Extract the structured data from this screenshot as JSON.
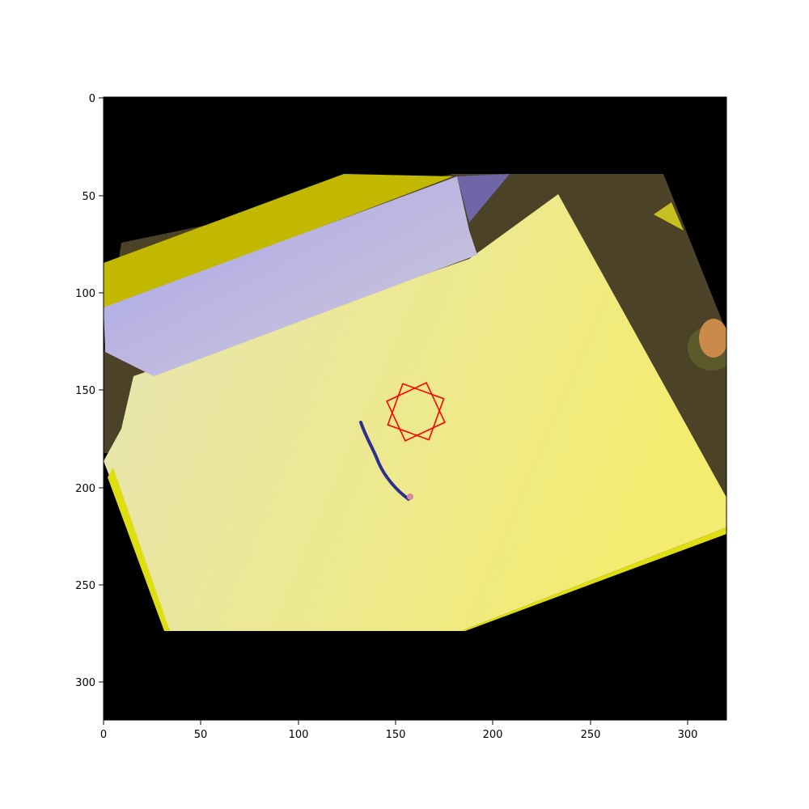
{
  "figure": {
    "x_ticks": [
      "0",
      "50",
      "100",
      "150",
      "200",
      "250",
      "300"
    ],
    "y_ticks": [
      "0",
      "50",
      "100",
      "150",
      "200",
      "250",
      "300"
    ],
    "colors": {
      "background": "#000000",
      "table": "#f2ec78",
      "box_face": "#b3aee6",
      "box_top": "#c2b800",
      "floor": "#4b4228",
      "marker": "#ff0000",
      "stroke": "#2b2f8f"
    },
    "overlay": {
      "shape": "rotated-square-star-icon",
      "center": [
        160,
        160
      ]
    }
  }
}
